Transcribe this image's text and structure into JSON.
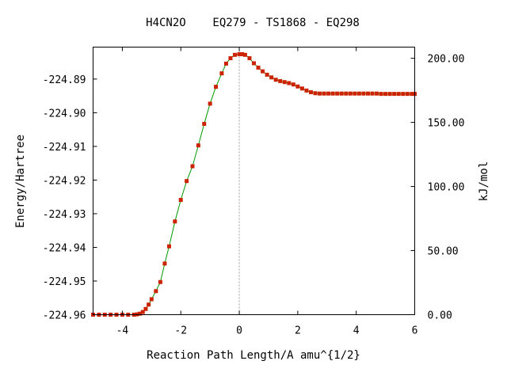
{
  "chart_data": {
    "type": "line",
    "title": "H4CN2O    EQ279 - TS1868 - EQ298",
    "xlabel": "Reaction Path Length/A amu^{1/2}",
    "ylabel": "Energy/Hartree",
    "y2label": "kJ/mol",
    "xlim": [
      -5,
      6
    ],
    "ylim": [
      -224.96,
      -224.8805
    ],
    "x_ticks": [
      -4,
      -2,
      0,
      2,
      4,
      6
    ],
    "x_tick_labels": [
      "-4",
      "-2",
      "0",
      "2",
      "4",
      "6"
    ],
    "y_ticks": [
      -224.96,
      -224.95,
      -224.94,
      -224.93,
      -224.92,
      -224.91,
      -224.9,
      -224.89
    ],
    "y_tick_labels": [
      "-224.96",
      "-224.95",
      "-224.94",
      "-224.93",
      "-224.92",
      "-224.91",
      "-224.90",
      "-224.89"
    ],
    "y2_reference": -224.96,
    "y2_hartree_to_kj": 2625.5,
    "y2_ticks": [
      0,
      50,
      100,
      150,
      200
    ],
    "y2_tick_labels": [
      "0.00",
      "50.00",
      "100.00",
      "150.00",
      "200.00"
    ],
    "ts_x": 0,
    "grid": false,
    "line_color": "#009900",
    "marker_color": "#cc2200",
    "ts_line_color": "#999999",
    "series": [
      {
        "x": [
          -5.0,
          -4.8,
          -4.6,
          -4.4,
          -4.2,
          -4.0,
          -3.8,
          -3.6,
          -3.5,
          -3.4,
          -3.3,
          -3.2,
          -3.1,
          -3.0,
          -2.85,
          -2.7,
          -2.55,
          -2.4,
          -2.2,
          -2.0,
          -1.8,
          -1.6,
          -1.4,
          -1.2,
          -1.0,
          -0.8,
          -0.6,
          -0.45,
          -0.3,
          -0.15,
          0.0,
          0.1,
          0.2,
          0.35,
          0.5,
          0.65,
          0.8,
          0.95,
          1.1,
          1.25,
          1.4,
          1.55,
          1.7,
          1.85,
          2.0,
          2.15,
          2.3,
          2.45,
          2.6,
          2.75,
          2.9,
          3.05,
          3.2,
          3.35,
          3.5,
          3.65,
          3.8,
          3.95,
          4.1,
          4.25,
          4.4,
          4.55,
          4.7,
          4.85,
          5.0,
          5.15,
          5.3,
          5.45,
          5.6,
          5.75,
          5.9,
          6.0
        ],
        "y": [
          -224.96,
          -224.96,
          -224.96,
          -224.96,
          -224.96,
          -224.96,
          -224.96,
          -224.96,
          -224.9599,
          -224.9597,
          -224.9592,
          -224.9583,
          -224.957,
          -224.9554,
          -224.953,
          -224.9503,
          -224.9448,
          -224.9397,
          -224.9323,
          -224.9259,
          -224.9203,
          -224.9159,
          -224.9097,
          -224.9033,
          -224.8973,
          -224.8923,
          -224.8883,
          -224.8854,
          -224.8838,
          -224.8828,
          -224.8826,
          -224.8826,
          -224.8828,
          -224.8838,
          -224.8853,
          -224.8866,
          -224.8877,
          -224.8887,
          -224.8895,
          -224.8902,
          -224.8906,
          -224.8909,
          -224.8912,
          -224.8916,
          -224.8922,
          -224.8928,
          -224.8934,
          -224.8939,
          -224.8942,
          -224.8943,
          -224.8943,
          -224.8943,
          -224.8943,
          -224.8943,
          -224.8943,
          -224.8943,
          -224.8943,
          -224.8943,
          -224.8943,
          -224.8943,
          -224.8943,
          -224.8943,
          -224.8943,
          -224.8944,
          -224.8944,
          -224.8944,
          -224.8944,
          -224.8944,
          -224.8944,
          -224.8944,
          -224.8944,
          -224.8944
        ]
      }
    ]
  }
}
